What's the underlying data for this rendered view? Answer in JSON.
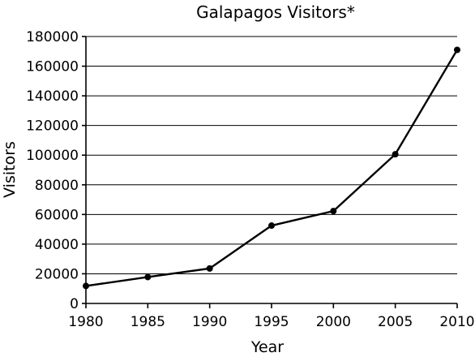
{
  "chart_data": {
    "type": "line",
    "title": "Galapagos Visitors*",
    "xlabel": "Year",
    "ylabel": "Visitors",
    "x": [
      1980,
      1985,
      1990,
      1995,
      2000,
      2005,
      2010
    ],
    "series": [
      {
        "values": [
          11800,
          17800,
          23600,
          52500,
          62300,
          100600,
          171000
        ]
      }
    ],
    "xlim": [
      1980,
      2010
    ],
    "ylim": [
      0,
      180000
    ],
    "xticks": [
      "1980",
      "1985",
      "1990",
      "1995",
      "2000",
      "2005",
      "2010"
    ],
    "yticks": [
      "0",
      "20000",
      "40000",
      "60000",
      "80000",
      "100000",
      "120000",
      "140000",
      "160000",
      "180000"
    ],
    "grid": true,
    "legend": "none"
  }
}
